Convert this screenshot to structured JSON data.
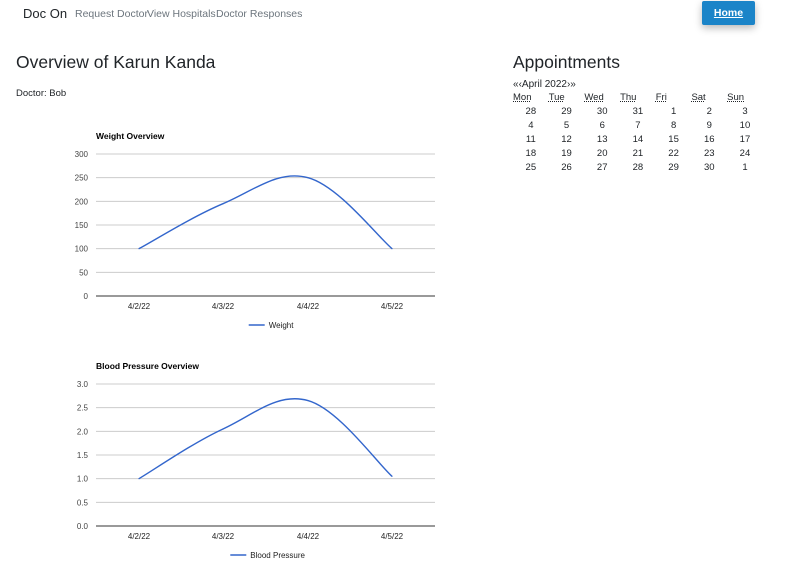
{
  "nav": {
    "brand": "Doc On",
    "links": [
      "Request Doctor",
      "View Hospitals",
      "Doctor Responses"
    ],
    "home_button": "Home"
  },
  "overview": {
    "title": "Overview of Karun Kanda",
    "doctor": "Doctor: Bob"
  },
  "appointments": {
    "title": "Appointments",
    "prev": "«",
    "next": "»",
    "prev_month": "‹",
    "next_month": "›",
    "month": "April 2022",
    "weekdays": [
      "Mon",
      "Tue",
      "Wed",
      "Thu",
      "Fri",
      "Sat",
      "Sun"
    ],
    "weeks": [
      [
        "28",
        "29",
        "30",
        "31",
        "1",
        "2",
        "3"
      ],
      [
        "4",
        "5",
        "6",
        "7",
        "8",
        "9",
        "10"
      ],
      [
        "11",
        "12",
        "13",
        "14",
        "15",
        "16",
        "17"
      ],
      [
        "18",
        "19",
        "20",
        "21",
        "22",
        "23",
        "24"
      ],
      [
        "25",
        "26",
        "27",
        "28",
        "29",
        "30",
        "1"
      ]
    ]
  },
  "chart_data": [
    {
      "type": "line",
      "title": "Weight Overview",
      "categories": [
        "4/2/22",
        "4/3/22",
        "4/4/22",
        "4/5/22"
      ],
      "series": [
        {
          "name": "Weight",
          "values": [
            100,
            195,
            250,
            100
          ]
        }
      ],
      "ylim": [
        0,
        300
      ],
      "yticks": [
        "0",
        "50",
        "100",
        "150",
        "200",
        "250",
        "300"
      ],
      "grid": true,
      "legend": "bottom",
      "color": "#3366cc"
    },
    {
      "type": "line",
      "title": "Blood Pressure Overview",
      "categories": [
        "4/2/22",
        "4/3/22",
        "4/4/22",
        "4/5/22"
      ],
      "series": [
        {
          "name": "Blood Pressure",
          "values": [
            1.0,
            2.05,
            2.65,
            1.05
          ]
        }
      ],
      "ylim": [
        0,
        3
      ],
      "yticks": [
        "0.0",
        "0.5",
        "1.0",
        "1.5",
        "2.0",
        "2.5",
        "3.0"
      ],
      "grid": true,
      "legend": "bottom",
      "color": "#3366cc"
    }
  ]
}
